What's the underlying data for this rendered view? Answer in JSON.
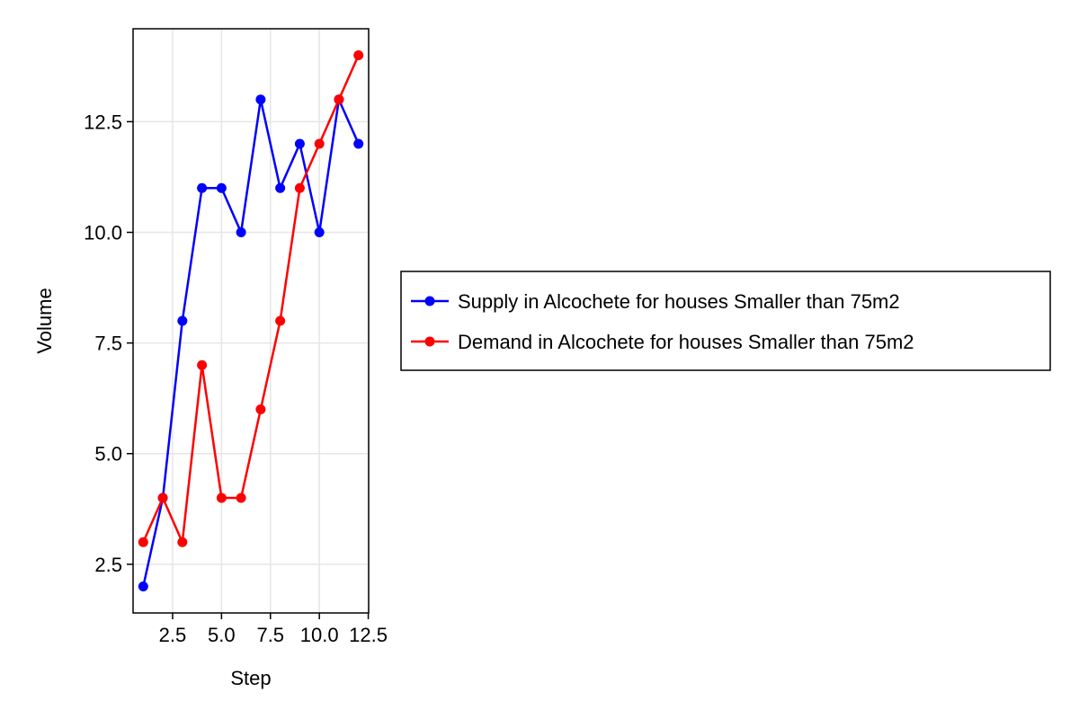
{
  "chart_data": {
    "type": "line",
    "title": "",
    "xlabel": "Step",
    "ylabel": "Volume",
    "xlim": [
      0.48,
      12.52
    ],
    "ylim": [
      1.4,
      14.6
    ],
    "x_ticks": [
      2.5,
      5.0,
      7.5,
      10.0,
      12.5
    ],
    "x_tick_labels": [
      "2.5",
      "5.0",
      "7.5",
      "10.0",
      "12.5"
    ],
    "y_ticks": [
      2.5,
      5.0,
      7.5,
      10.0,
      12.5
    ],
    "y_tick_labels": [
      "2.5",
      "5.0",
      "7.5",
      "10.0",
      "12.5"
    ],
    "grid": true,
    "legend_position": "right",
    "x": [
      1,
      2,
      3,
      4,
      5,
      6,
      7,
      8,
      9,
      10,
      11,
      12
    ],
    "series": [
      {
        "name": "Supply in Alcochete for houses Smaller than 75m2",
        "color": "#0000ff",
        "values": [
          2,
          4,
          8,
          11,
          11,
          10,
          13,
          11,
          12,
          10,
          13,
          12
        ]
      },
      {
        "name": "Demand in Alcochete for houses Smaller than 75m2",
        "color": "#ff0000",
        "values": [
          3,
          4,
          3,
          7,
          4,
          4,
          6,
          8,
          11,
          12,
          13,
          14
        ]
      }
    ]
  }
}
